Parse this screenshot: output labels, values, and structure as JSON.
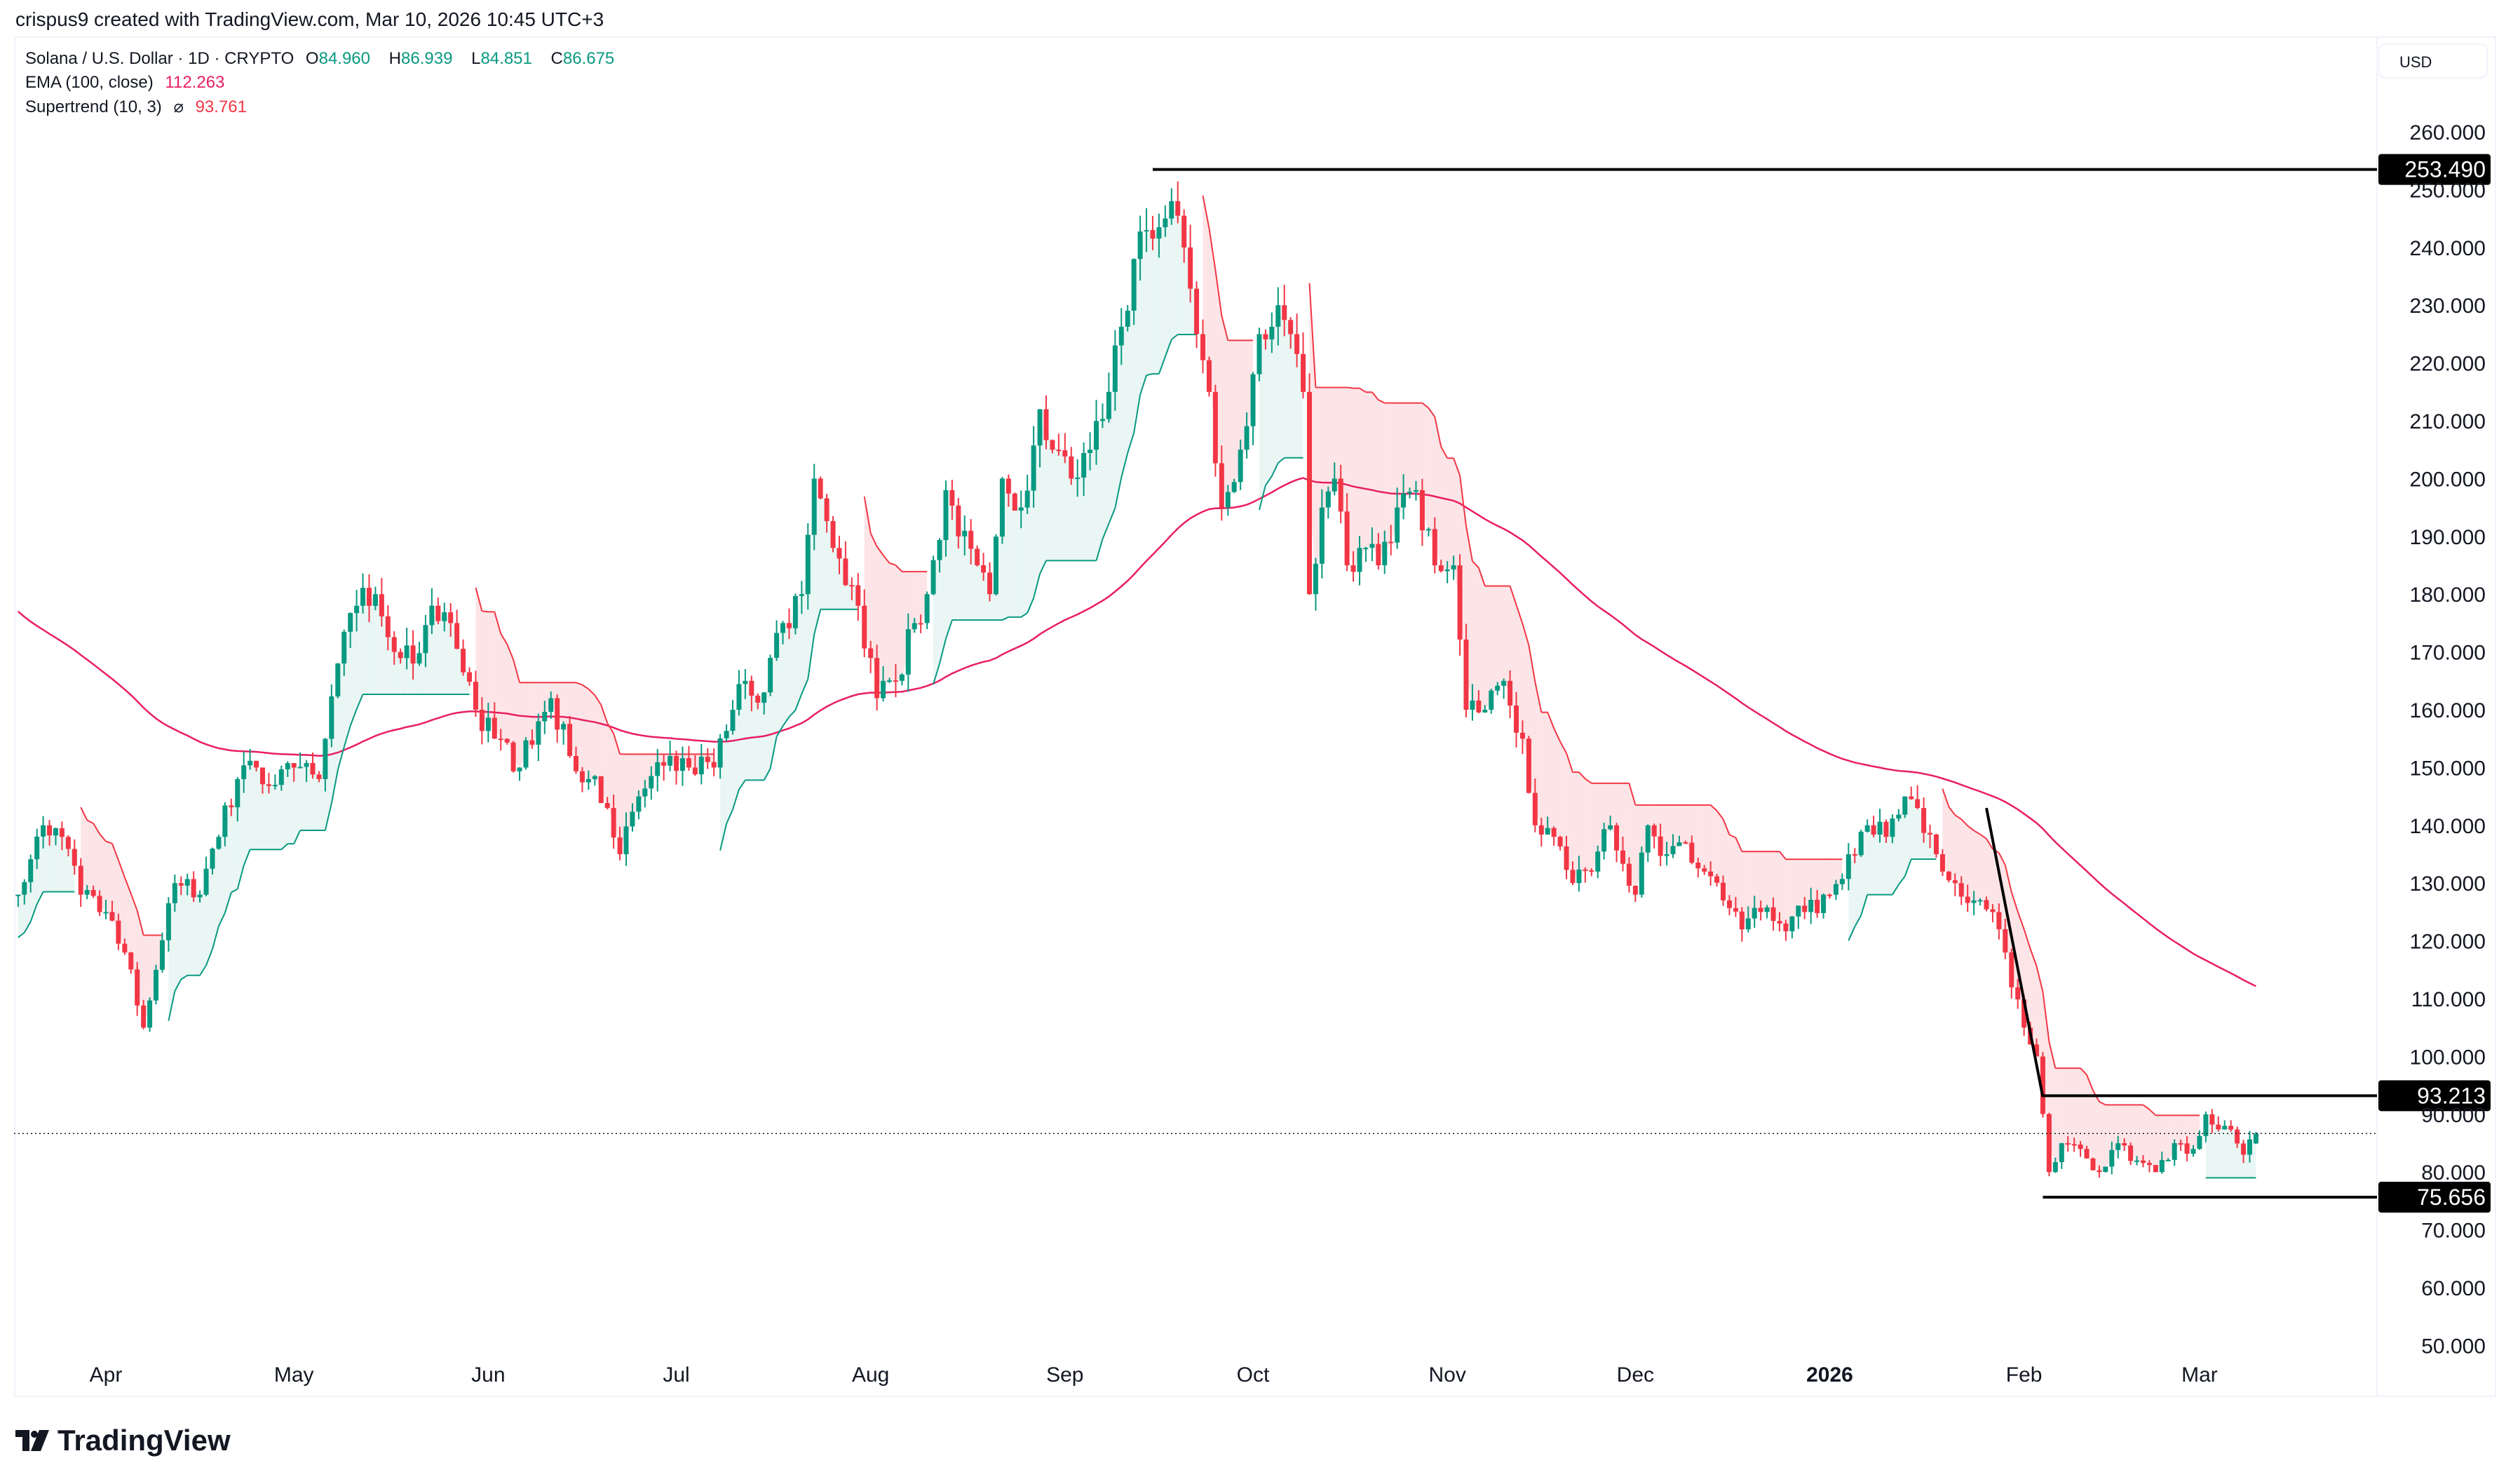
{
  "header": {
    "credit": "crispus9 created with TradingView.com, Mar 10, 2026 10:45 UTC+3",
    "symbol": "Solana / U.S. Dollar · 1D · CRYPTO",
    "ohlc": {
      "o_label": "O",
      "o": "84.960",
      "h_label": "H",
      "h": "86.939",
      "l_label": "L",
      "l": "84.851",
      "c_label": "C",
      "c": "86.675"
    },
    "ema_label": "EMA (100, close)",
    "ema_value": "112.263",
    "supertrend_label": "Supertrend (10, 3)",
    "supertrend_symbol": "⌀",
    "supertrend_value": "93.761",
    "currency": "USD"
  },
  "branding": {
    "logo_text": "TradingView"
  },
  "colors": {
    "up": "#089981",
    "down": "#f23645",
    "ema": "#e91e63",
    "st_up_fill": "rgba(8,153,129,0.09)",
    "st_down_fill": "rgba(242,54,69,0.13)"
  },
  "chart_data": {
    "type": "candlestick",
    "title": "Solana / U.S. Dollar · 1D · CRYPTO",
    "ylim": [
      50,
      260
    ],
    "y_ticks": [
      "260.000",
      "250.000",
      "240.000",
      "230.000",
      "220.000",
      "210.000",
      "200.000",
      "190.000",
      "180.000",
      "170.000",
      "160.000",
      "150.000",
      "140.000",
      "130.000",
      "120.000",
      "110.000",
      "100.000",
      "90.000",
      "80.000",
      "70.000",
      "60.000",
      "50.000"
    ],
    "x_ticks": [
      {
        "label": "Apr",
        "date": "2025-04-01"
      },
      {
        "label": "May",
        "date": "2025-05-01"
      },
      {
        "label": "Jun",
        "date": "2025-06-01"
      },
      {
        "label": "Jul",
        "date": "2025-07-01"
      },
      {
        "label": "Aug",
        "date": "2025-08-01"
      },
      {
        "label": "Sep",
        "date": "2025-09-01"
      },
      {
        "label": "Oct",
        "date": "2025-10-01"
      },
      {
        "label": "Nov",
        "date": "2025-11-01"
      },
      {
        "label": "Dec",
        "date": "2025-12-01"
      },
      {
        "label": "2026",
        "date": "2026-01-01",
        "bold": true
      },
      {
        "label": "Feb",
        "date": "2026-02-01"
      },
      {
        "label": "Mar",
        "date": "2026-03-01"
      }
    ],
    "ema_seed": 178,
    "key_closes": [
      [
        "2025-03-18",
        128
      ],
      [
        "2025-03-22",
        140
      ],
      [
        "2025-03-25",
        138
      ],
      [
        "2025-03-28",
        128
      ],
      [
        "2025-04-01",
        125
      ],
      [
        "2025-04-04",
        118
      ],
      [
        "2025-04-07",
        105
      ],
      [
        "2025-04-09",
        115
      ],
      [
        "2025-04-12",
        130
      ],
      [
        "2025-04-16",
        128
      ],
      [
        "2025-04-19",
        138
      ],
      [
        "2025-04-22",
        148
      ],
      [
        "2025-04-25",
        150
      ],
      [
        "2025-04-28",
        147
      ],
      [
        "2025-05-01",
        150
      ],
      [
        "2025-05-05",
        148
      ],
      [
        "2025-05-08",
        168
      ],
      [
        "2025-05-11",
        178
      ],
      [
        "2025-05-14",
        180
      ],
      [
        "2025-05-17",
        170
      ],
      [
        "2025-05-20",
        168
      ],
      [
        "2025-05-23",
        178
      ],
      [
        "2025-05-26",
        175
      ],
      [
        "2025-05-30",
        160
      ],
      [
        "2025-06-02",
        155
      ],
      [
        "2025-06-06",
        150
      ],
      [
        "2025-06-09",
        158
      ],
      [
        "2025-06-11",
        162
      ],
      [
        "2025-06-14",
        152
      ],
      [
        "2025-06-17",
        148
      ],
      [
        "2025-06-20",
        143
      ],
      [
        "2025-06-22",
        135
      ],
      [
        "2025-06-25",
        145
      ],
      [
        "2025-06-30",
        152
      ],
      [
        "2025-07-03",
        150
      ],
      [
        "2025-07-07",
        150
      ],
      [
        "2025-07-10",
        160
      ],
      [
        "2025-07-12",
        165
      ],
      [
        "2025-07-15",
        163
      ],
      [
        "2025-07-18",
        175
      ],
      [
        "2025-07-21",
        180
      ],
      [
        "2025-07-23",
        200
      ],
      [
        "2025-07-26",
        188
      ],
      [
        "2025-07-30",
        178
      ],
      [
        "2025-08-02",
        162
      ],
      [
        "2025-08-05",
        165
      ],
      [
        "2025-08-08",
        175
      ],
      [
        "2025-08-10",
        180
      ],
      [
        "2025-08-13",
        198
      ],
      [
        "2025-08-15",
        190
      ],
      [
        "2025-08-18",
        185
      ],
      [
        "2025-08-20",
        180
      ],
      [
        "2025-08-22",
        200
      ],
      [
        "2025-08-25",
        195
      ],
      [
        "2025-08-28",
        212
      ],
      [
        "2025-08-30",
        205
      ],
      [
        "2025-09-02",
        200
      ],
      [
        "2025-09-05",
        205
      ],
      [
        "2025-09-08",
        215
      ],
      [
        "2025-09-12",
        238
      ],
      [
        "2025-09-14",
        243
      ],
      [
        "2025-09-17",
        245
      ],
      [
        "2025-09-18",
        248
      ],
      [
        "2025-09-20",
        240
      ],
      [
        "2025-09-22",
        225
      ],
      [
        "2025-09-24",
        215
      ],
      [
        "2025-09-26",
        195
      ],
      [
        "2025-09-29",
        205
      ],
      [
        "2025-10-02",
        225
      ],
      [
        "2025-10-05",
        230
      ],
      [
        "2025-10-07",
        225
      ],
      [
        "2025-10-09",
        215
      ],
      [
        "2025-10-10",
        180
      ],
      [
        "2025-10-12",
        195
      ],
      [
        "2025-10-14",
        200
      ],
      [
        "2025-10-16",
        185
      ],
      [
        "2025-10-18",
        188
      ],
      [
        "2025-10-21",
        185
      ],
      [
        "2025-10-24",
        195
      ],
      [
        "2025-10-27",
        198
      ],
      [
        "2025-10-30",
        185
      ],
      [
        "2025-11-02",
        185
      ],
      [
        "2025-11-04",
        160
      ],
      [
        "2025-11-07",
        160
      ],
      [
        "2025-11-10",
        165
      ],
      [
        "2025-11-13",
        155
      ],
      [
        "2025-11-15",
        140
      ],
      [
        "2025-11-18",
        138
      ],
      [
        "2025-11-21",
        130
      ],
      [
        "2025-11-24",
        132
      ],
      [
        "2025-11-27",
        140
      ],
      [
        "2025-12-01",
        128
      ],
      [
        "2025-12-03",
        140
      ],
      [
        "2025-12-06",
        135
      ],
      [
        "2025-12-09",
        137
      ],
      [
        "2025-12-12",
        132
      ],
      [
        "2025-12-15",
        127
      ],
      [
        "2025-12-18",
        122
      ],
      [
        "2025-12-21",
        125
      ],
      [
        "2025-12-24",
        123
      ],
      [
        "2025-12-28",
        125
      ],
      [
        "2026-01-01",
        128
      ],
      [
        "2026-01-04",
        135
      ],
      [
        "2026-01-07",
        140
      ],
      [
        "2026-01-10",
        138
      ],
      [
        "2026-01-13",
        145
      ],
      [
        "2026-01-15",
        143
      ],
      [
        "2026-01-18",
        135
      ],
      [
        "2026-01-21",
        130
      ],
      [
        "2026-01-24",
        127
      ],
      [
        "2026-01-27",
        125
      ],
      [
        "2026-01-29",
        118
      ],
      [
        "2026-02-01",
        105
      ],
      [
        "2026-02-03",
        100
      ],
      [
        "2026-02-05",
        80
      ],
      [
        "2026-02-07",
        85
      ],
      [
        "2026-02-10",
        84
      ],
      [
        "2026-02-13",
        80
      ],
      [
        "2026-02-16",
        85
      ],
      [
        "2026-02-19",
        82
      ],
      [
        "2026-02-22",
        80
      ],
      [
        "2026-02-25",
        85
      ],
      [
        "2026-02-28",
        84
      ],
      [
        "2026-03-02",
        90
      ],
      [
        "2026-03-05",
        88
      ],
      [
        "2026-03-08",
        83
      ],
      [
        "2026-03-10",
        86.675
      ]
    ],
    "last_candle": {
      "date": "2026-03-10",
      "open": 84.96,
      "high": 86.939,
      "low": 84.851,
      "close": 86.675
    },
    "drawings": {
      "horizontal_lines": [
        {
          "price": 253.49,
          "label": "253.490",
          "from": "2025-09-15"
        },
        {
          "price": 93.213,
          "label": "93.213",
          "from": "2026-02-04"
        },
        {
          "price": 75.656,
          "label": "75.656",
          "from": "2026-02-04"
        }
      ],
      "trend_line": {
        "from": [
          "2026-01-26",
          143
        ],
        "to": [
          "2026-02-04",
          93
        ]
      },
      "current_price": 86.675
    }
  }
}
